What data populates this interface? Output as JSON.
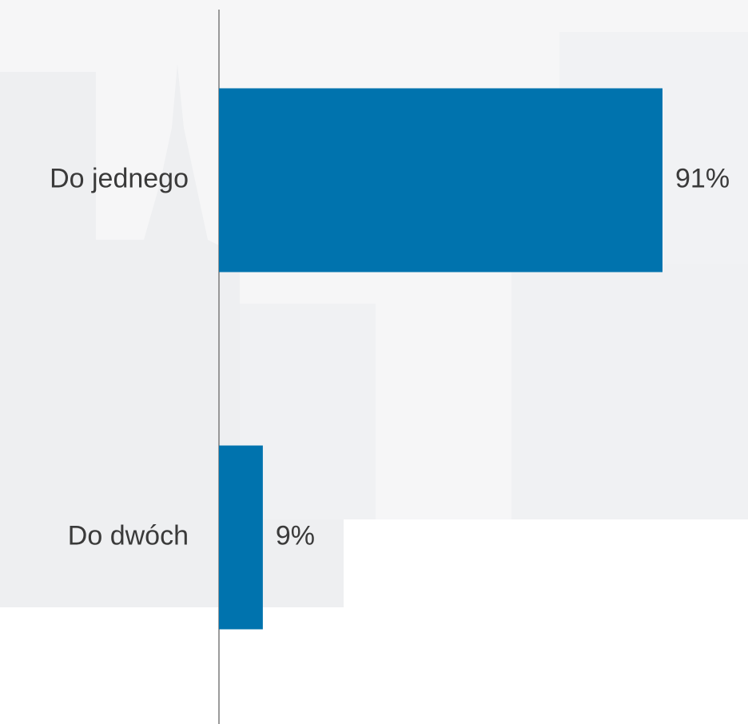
{
  "chart_data": {
    "type": "bar",
    "orientation": "horizontal",
    "categories": [
      "Do jednego",
      "Do dwóch"
    ],
    "values": [
      91,
      9
    ],
    "value_labels": [
      "91%",
      "9%"
    ],
    "color": "#0073ae"
  }
}
